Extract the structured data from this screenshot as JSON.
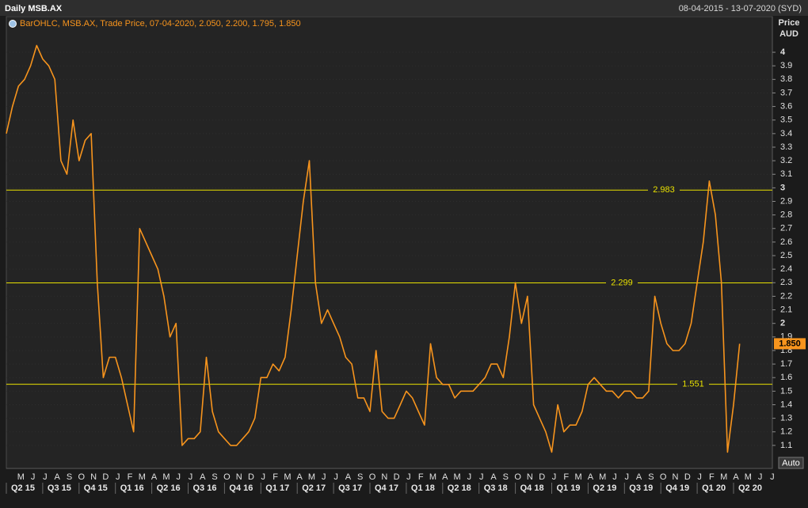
{
  "chart_data": {
    "type": "line",
    "title": "Daily MSB.AX",
    "date_range": "08-04-2015 - 13-07-2020 (SYD)",
    "legend_text": "BarOHLC, MSB.AX, Trade Price, 07-04-2020, 2.050, 2.200, 1.795, 1.850",
    "y_axis_label": "Price",
    "y_axis_unit": "AUD",
    "button": "Auto",
    "categories": [
      null,
      null,
      "M",
      null,
      "J",
      null,
      "J",
      null,
      "A",
      null,
      "S",
      null,
      "O",
      null,
      "N",
      null,
      "D",
      null,
      "J",
      null,
      "F",
      null,
      "M",
      null,
      "A",
      null,
      "M",
      null,
      "J",
      null,
      "J",
      null,
      "A",
      null,
      "S",
      null,
      "O",
      null,
      "N",
      null,
      "D",
      null,
      "J",
      null,
      "F",
      null,
      "M",
      null,
      "A",
      null,
      "M",
      null,
      "J",
      null,
      "J",
      null,
      "A",
      null,
      "S",
      null,
      "O",
      null,
      "N",
      null,
      "D",
      null,
      "J",
      null,
      "F",
      null,
      "M",
      null,
      "A",
      null,
      "M",
      null,
      "J",
      null,
      "J",
      null,
      "A",
      null,
      "S",
      null,
      "O",
      null,
      "N",
      null,
      "D",
      null,
      "J",
      null,
      "F",
      null,
      "M",
      null,
      "A",
      null,
      "M",
      null,
      "J",
      null,
      "J",
      null,
      "A",
      null,
      "S",
      null,
      "O",
      null,
      "N",
      null,
      "D",
      null,
      "J",
      null,
      "F",
      null,
      "M",
      null,
      "A",
      null,
      "M",
      null,
      "J",
      null,
      "J",
      null
    ],
    "quarters": [
      "Q2 15",
      null,
      null,
      null,
      null,
      null,
      "Q3 15",
      null,
      null,
      null,
      null,
      null,
      "Q4 15",
      null,
      null,
      null,
      null,
      null,
      "Q1 16",
      null,
      null,
      null,
      null,
      null,
      "Q2 16",
      null,
      null,
      null,
      null,
      null,
      "Q3 16",
      null,
      null,
      null,
      null,
      null,
      "Q4 16",
      null,
      null,
      null,
      null,
      null,
      "Q1 17",
      null,
      null,
      null,
      null,
      null,
      "Q2 17",
      null,
      null,
      null,
      null,
      null,
      "Q3 17",
      null,
      null,
      null,
      null,
      null,
      "Q4 17",
      null,
      null,
      null,
      null,
      null,
      "Q1 18",
      null,
      null,
      null,
      null,
      null,
      "Q2 18",
      null,
      null,
      null,
      null,
      null,
      "Q3 18",
      null,
      null,
      null,
      null,
      null,
      "Q4 18",
      null,
      null,
      null,
      null,
      null,
      "Q1 19",
      null,
      null,
      null,
      null,
      null,
      "Q2 19",
      null,
      null,
      null,
      null,
      null,
      "Q3 19",
      null,
      null,
      null,
      null,
      null,
      "Q4 19",
      null,
      null,
      null,
      null,
      null,
      "Q1 20",
      null,
      null,
      null,
      null,
      null,
      "Q2 20",
      null,
      null,
      null,
      null,
      null,
      null,
      null
    ],
    "series": [
      {
        "name": "MSB.AX",
        "color": "#f7941d",
        "values": [
          3.4,
          3.6,
          3.75,
          3.8,
          3.9,
          4.05,
          3.95,
          3.9,
          3.8,
          3.2,
          3.1,
          3.5,
          3.2,
          3.35,
          3.4,
          2.3,
          1.6,
          1.75,
          1.75,
          1.6,
          1.4,
          1.2,
          2.7,
          2.6,
          2.5,
          2.4,
          2.2,
          1.9,
          2.0,
          1.1,
          1.15,
          1.15,
          1.2,
          1.75,
          1.35,
          1.2,
          1.15,
          1.1,
          1.1,
          1.15,
          1.2,
          1.3,
          1.6,
          1.6,
          1.7,
          1.65,
          1.75,
          2.1,
          2.5,
          2.9,
          3.2,
          2.3,
          2.0,
          2.1,
          2.0,
          1.9,
          1.75,
          1.7,
          1.45,
          1.45,
          1.35,
          1.8,
          1.35,
          1.3,
          1.3,
          1.4,
          1.5,
          1.45,
          1.35,
          1.25,
          1.85,
          1.6,
          1.55,
          1.55,
          1.45,
          1.5,
          1.5,
          1.5,
          1.55,
          1.6,
          1.7,
          1.7,
          1.6,
          1.9,
          2.3,
          2.0,
          2.2,
          1.4,
          1.3,
          1.2,
          1.05,
          1.4,
          1.2,
          1.25,
          1.25,
          1.35,
          1.55,
          1.6,
          1.55,
          1.5,
          1.5,
          1.45,
          1.5,
          1.5,
          1.45,
          1.45,
          1.5,
          2.2,
          2.0,
          1.85,
          1.8,
          1.8,
          1.85,
          2.0,
          2.3,
          2.6,
          3.05,
          2.8,
          2.3,
          1.05,
          1.4,
          1.85,
          null,
          null,
          null,
          null,
          null,
          null
        ]
      }
    ],
    "hlines": [
      2.983,
      2.299,
      1.551
    ],
    "hline_color": "#e8e000",
    "last_price": {
      "value": 1.85,
      "label": "1.850"
    },
    "ylim": [
      0.93,
      4.263
    ],
    "yticks": [
      1.1,
      1.2,
      1.3,
      1.4,
      1.5,
      1.6,
      1.7,
      1.8,
      1.9,
      2,
      2.1,
      2.2,
      2.3,
      2.4,
      2.5,
      2.6,
      2.7,
      2.8,
      2.9,
      3,
      3.1,
      3.2,
      3.3,
      3.4,
      3.5,
      3.6,
      3.7,
      3.8,
      3.9,
      4
    ],
    "grid": true
  }
}
